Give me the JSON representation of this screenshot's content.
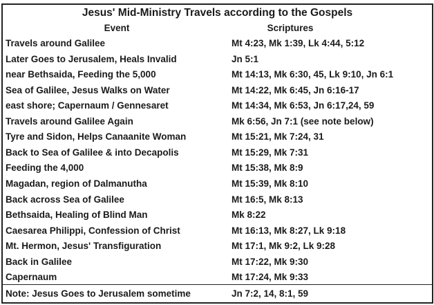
{
  "title": "Jesus' Mid-Ministry Travels according to the Gospels",
  "headers": {
    "event": "Event",
    "scriptures": "Scriptures"
  },
  "rows": [
    {
      "event": "Travels around Galilee",
      "scriptures": "Mt 4:23, Mk 1:39, Lk 4:44, 5:12"
    },
    {
      "event": "Later Goes to Jerusalem, Heals Invalid",
      "scriptures": "Jn 5:1"
    },
    {
      "event": "near Bethsaida, Feeding the 5,000",
      "scriptures": "Mt 14:13, Mk 6:30, 45, Lk 9:10, Jn 6:1"
    },
    {
      "event": "Sea of Galilee, Jesus Walks on Water",
      "scriptures": "Mt 14:22, Mk 6:45, Jn 6:16-17"
    },
    {
      "event": "east shore; Capernaum / Gennesaret",
      "scriptures": "Mt 14:34, Mk 6:53, Jn 6:17,24, 59"
    },
    {
      "event": "Travels around Galilee Again",
      "scriptures": "Mk 6:56, Jn 7:1 (see note below)"
    },
    {
      "event": "Tyre and Sidon, Helps Canaanite Woman",
      "scriptures": "Mt 15:21, Mk 7:24, 31"
    },
    {
      "event": "Back to Sea of Galilee & into Decapolis",
      "scriptures": "Mt 15:29, Mk 7:31"
    },
    {
      "event": "Feeding the 4,000",
      "scriptures": "Mt 15:38, Mk 8:9"
    },
    {
      "event": "Magadan, region of Dalmanutha",
      "scriptures": "Mt 15:39, Mk 8:10"
    },
    {
      "event": "Back across Sea of Galilee",
      "scriptures": "Mt 16:5, Mk 8:13"
    },
    {
      "event": "Bethsaida, Healing of Blind Man",
      "scriptures": "Mk 8:22"
    },
    {
      "event": "Caesarea Philippi, Confession of Christ",
      "scriptures": "Mt 16:13, Mk 8:27, Lk 9:18"
    },
    {
      "event": "Mt. Hermon, Jesus' Transfiguration",
      "scriptures": "Mt 17:1, Mk 9:2, Lk 9:28"
    },
    {
      "event": "Back in Galilee",
      "scriptures": "Mt 17:22, Mk 9:30"
    },
    {
      "event": "Capernaum",
      "scriptures": "Mt 17:24, Mk 9:33"
    }
  ],
  "note": {
    "event": "Note: Jesus Goes to Jerusalem sometime",
    "scriptures": "Jn 7:2, 14, 8:1, 59"
  }
}
